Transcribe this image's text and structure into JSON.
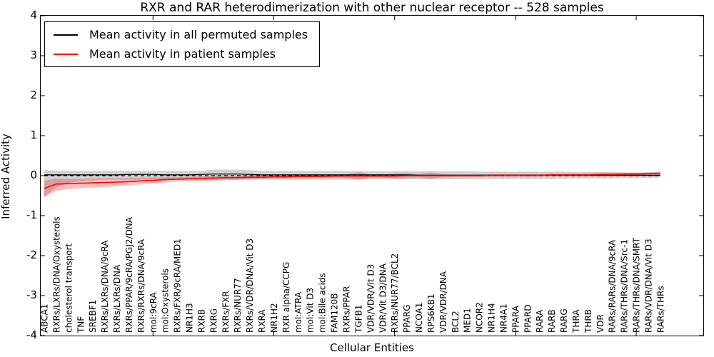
{
  "chart": {
    "title": "RXR and RAR heterodimerization with other nuclear receptor -- 528 samples",
    "xlabel": "Cellular Entities",
    "ylabel": "Inferred Activity",
    "legend": [
      {
        "label": "Mean activity in all permuted samples",
        "color": "#000000"
      },
      {
        "label": "Mean activity in patient samples",
        "color": "#ff0000"
      }
    ]
  },
  "chart_data": {
    "type": "line",
    "title": "RXR and RAR heterodimerization with other nuclear receptor -- 528 samples",
    "xlabel": "Cellular Entities",
    "ylabel": "Inferred Activity",
    "ylim": [
      -4,
      4
    ],
    "yticks": [
      4,
      3,
      2,
      1,
      0,
      -1,
      -2,
      -3,
      -4
    ],
    "grid": false,
    "legend_position": "upper left",
    "zero_line": {
      "y": 0,
      "style": "dashed",
      "color": "#000000"
    },
    "x_major_tick_indices": [
      9,
      19,
      29,
      39,
      49
    ],
    "categories": [
      "ABCA1",
      "RXRs/LXRs/DNA/Oxysterols",
      "cholesterol transport",
      "TNF",
      "SREBF1",
      "RXRs/LXRs/DNA/9cRA",
      "RXRs/LXRs/DNA",
      "RXRs/PPAR/9cRA/PGJ2/DNA",
      "RXRs/RXRs/DNA/9cRA",
      "mol:9cRA",
      "mol:Oxysterols",
      "RXRs/FXR/9cRA/MED1",
      "NR1H3",
      "RXRB",
      "RXRG",
      "RXRs/FXR",
      "RXRs/NUR77",
      "RXRs/VDR/DNA/Vit D3",
      "RXRA",
      "NR1H2",
      "RXR alpha/CCPG",
      "mol:ATRA",
      "mol:Vit D3",
      "mol:Bile acids",
      "FAM120B",
      "RXRs/PPAR",
      "TGFB1",
      "VDR/VDR/Vit D3",
      "VDR/Vit D3/DNA",
      "RXRs/NUR77/BCL2",
      "PPARG",
      "NCOA1",
      "RPS6KB1",
      "VDR/VDR/DNA",
      "BCL2",
      "MED1",
      "NCOR2",
      "NR1H4",
      "NR4A1",
      "PPARA",
      "PPARD",
      "RARA",
      "RARB",
      "RARG",
      "THRA",
      "THRB",
      "VDR",
      "RARs/RARs/DNA/9cRA",
      "RARs/THRs/DNA/Src-1",
      "RARs/THRs/DNA/SMRT",
      "RARs/VDR/DNA/Vit D3",
      "RARs/THRs"
    ],
    "series": [
      {
        "name": "Mean activity in all permuted samples",
        "color": "#000000",
        "band_color": "rgba(0,0,0,0.18)",
        "values": [
          0.02,
          0.02,
          0.02,
          0.02,
          0.02,
          0.02,
          0.02,
          0.03,
          0.03,
          0.03,
          0.02,
          0.02,
          0.02,
          0.03,
          0.04,
          0.04,
          0.04,
          0.03,
          0.02,
          0.02,
          0.02,
          0.02,
          0.02,
          0.02,
          0.02,
          0.02,
          0.02,
          0.02,
          0.02,
          0.02,
          0.02,
          0.01,
          0.01,
          0.01,
          0.01,
          0.01,
          0.01,
          0.01,
          0.01,
          0.01,
          0.01,
          0.01,
          0.01,
          0.01,
          0.01,
          0.01,
          0.01,
          0.01,
          0.01,
          0.01,
          0.01,
          0.01
        ],
        "band_lo": [
          -0.52,
          -0.3,
          -0.18,
          -0.14,
          -0.12,
          -0.1,
          -0.1,
          -0.1,
          -0.1,
          -0.1,
          -0.1,
          -0.1,
          -0.1,
          -0.1,
          -0.1,
          -0.1,
          -0.1,
          -0.1,
          -0.1,
          -0.1,
          -0.1,
          -0.1,
          -0.1,
          -0.1,
          -0.1,
          -0.1,
          -0.09,
          -0.09,
          -0.09,
          -0.09,
          -0.09,
          -0.09,
          -0.09,
          -0.09,
          -0.09,
          -0.09,
          -0.08,
          -0.08,
          -0.08,
          -0.08,
          -0.08,
          -0.08,
          -0.08,
          -0.08,
          -0.07,
          -0.07,
          -0.07,
          -0.07,
          -0.06,
          -0.06,
          -0.06,
          -0.05
        ],
        "band_hi": [
          0.14,
          0.13,
          0.12,
          0.12,
          0.12,
          0.12,
          0.12,
          0.12,
          0.12,
          0.12,
          0.12,
          0.12,
          0.12,
          0.12,
          0.15,
          0.15,
          0.15,
          0.14,
          0.12,
          0.12,
          0.12,
          0.12,
          0.12,
          0.12,
          0.12,
          0.12,
          0.11,
          0.11,
          0.11,
          0.11,
          0.11,
          0.11,
          0.11,
          0.11,
          0.11,
          0.11,
          0.1,
          0.1,
          0.1,
          0.1,
          0.1,
          0.1,
          0.1,
          0.1,
          0.09,
          0.09,
          0.09,
          0.09,
          0.08,
          0.08,
          0.08,
          0.08
        ]
      },
      {
        "name": "Mean activity in patient samples",
        "color": "#ff0000",
        "band_color": "rgba(255,0,0,0.25)",
        "values": [
          -0.32,
          -0.21,
          -0.2,
          -0.19,
          -0.18,
          -0.17,
          -0.16,
          -0.15,
          -0.13,
          -0.12,
          -0.1,
          -0.09,
          -0.08,
          -0.07,
          -0.06,
          -0.05,
          -0.05,
          -0.04,
          -0.04,
          -0.03,
          -0.03,
          -0.02,
          -0.02,
          -0.02,
          -0.01,
          -0.01,
          -0.01,
          -0.01,
          -0.01,
          -0.01,
          0,
          0,
          0,
          0,
          0,
          0,
          0,
          0.01,
          0.01,
          0.01,
          0.01,
          0.01,
          0.02,
          0.02,
          0.02,
          0.02,
          0.03,
          0.03,
          0.04,
          0.04,
          0.05,
          0.06
        ],
        "band_lo": [
          -0.55,
          -0.38,
          -0.34,
          -0.32,
          -0.3,
          -0.28,
          -0.26,
          -0.24,
          -0.22,
          -0.2,
          -0.17,
          -0.15,
          -0.14,
          -0.13,
          -0.12,
          -0.11,
          -0.1,
          -0.09,
          -0.08,
          -0.07,
          -0.07,
          -0.06,
          -0.06,
          -0.05,
          -0.05,
          -0.06,
          -0.11,
          -0.05,
          -0.05,
          -0.07,
          -0.06,
          -0.04,
          -0.08,
          -0.04,
          -0.03,
          -0.03,
          -0.03,
          -0.02,
          -0.02,
          -0.02,
          -0.02,
          -0.02,
          -0.01,
          -0.01,
          -0.01,
          -0.01,
          0,
          0,
          0.01,
          0.01,
          0.02,
          0.02
        ],
        "band_hi": [
          -0.12,
          -0.08,
          -0.08,
          -0.08,
          -0.07,
          -0.07,
          -0.06,
          -0.06,
          -0.05,
          -0.05,
          -0.04,
          -0.04,
          -0.03,
          -0.02,
          -0.01,
          0,
          0,
          0.01,
          0.01,
          0.01,
          0.01,
          0.02,
          0.02,
          0.02,
          0.02,
          0.03,
          0.09,
          0.03,
          0.03,
          0.05,
          0.06,
          0.04,
          0.08,
          0.04,
          0.03,
          0.03,
          0.03,
          0.04,
          0.04,
          0.04,
          0.04,
          0.04,
          0.05,
          0.05,
          0.05,
          0.05,
          0.06,
          0.06,
          0.07,
          0.07,
          0.08,
          0.1
        ]
      }
    ]
  }
}
